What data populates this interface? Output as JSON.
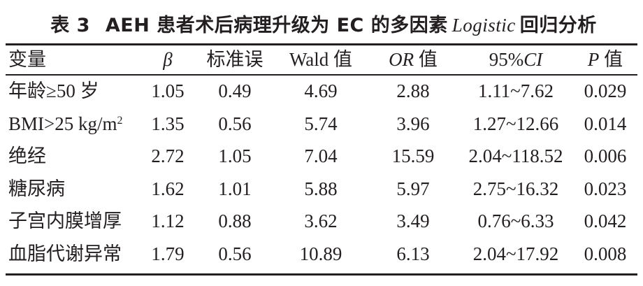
{
  "caption": {
    "label": "表 3",
    "text_before": "AEH 患者术后病理升级为 EC 的多因素",
    "text_italic": "Logistic",
    "text_after": "回归分析"
  },
  "table": {
    "headers": {
      "col0": "变量",
      "col1": "β",
      "col2": "标准误",
      "col3": "Wald 值",
      "col4_italic": "OR",
      "col4_suffix": " 值",
      "col5_prefix": "95%",
      "col5_italic": "CI",
      "col6_italic": "P",
      "col6_suffix": " 值"
    },
    "rows": [
      {
        "variable": "年龄≥50 岁",
        "beta": "1.05",
        "se": "0.49",
        "wald": "4.69",
        "or": "2.88",
        "ci": "1.11~7.62",
        "p": "0.029"
      },
      {
        "variable": "BMI>25 kg/m",
        "variable_sup": "2",
        "beta": "1.35",
        "se": "0.56",
        "wald": "5.74",
        "or": "3.96",
        "ci": "1.27~12.66",
        "p": "0.014"
      },
      {
        "variable": "绝经",
        "beta": "2.72",
        "se": "1.05",
        "wald": "7.04",
        "or": "15.59",
        "ci": "2.04~118.52",
        "p": "0.006"
      },
      {
        "variable": "糖尿病",
        "beta": "1.62",
        "se": "1.01",
        "wald": "5.88",
        "or": "5.97",
        "ci": "2.75~16.32",
        "p": "0.023"
      },
      {
        "variable": "子宫内膜增厚",
        "beta": "1.12",
        "se": "0.88",
        "wald": "3.62",
        "or": "3.49",
        "ci": "0.76~6.33",
        "p": "0.042"
      },
      {
        "variable": "血脂代谢异常",
        "beta": "1.79",
        "se": "0.56",
        "wald": "10.89",
        "or": "6.13",
        "ci": "2.04~17.92",
        "p": "0.008"
      }
    ]
  }
}
